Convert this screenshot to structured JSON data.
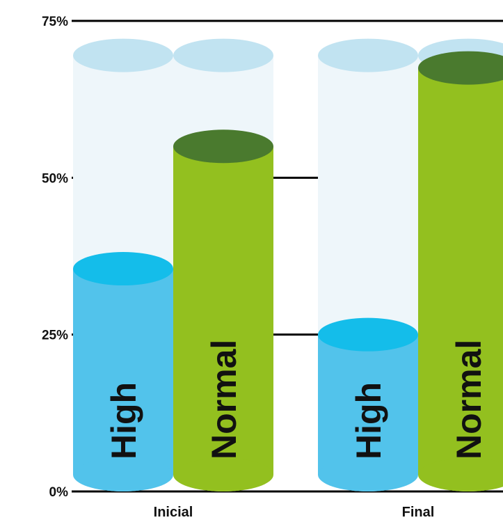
{
  "chart_data": {
    "type": "bar",
    "style": "3d-cylinder",
    "categories": [
      "Inicial",
      "Final"
    ],
    "series": [
      {
        "name": "High",
        "values": [
          35.5,
          25
        ],
        "color": "#52c3eb",
        "top_color": "#14bdea"
      },
      {
        "name": "Normal",
        "values": [
          55,
          67.5
        ],
        "color": "#93c01f",
        "top_color": "#4a7a2e"
      }
    ],
    "background_values": [
      69.5,
      69.5
    ],
    "background_color": "#eef6fa",
    "background_top_color": "#c1e3f1",
    "ylim": [
      0,
      75
    ],
    "yticks": [
      "0%",
      "25%",
      "50%",
      "75%"
    ],
    "grid": true,
    "legend": "none"
  }
}
